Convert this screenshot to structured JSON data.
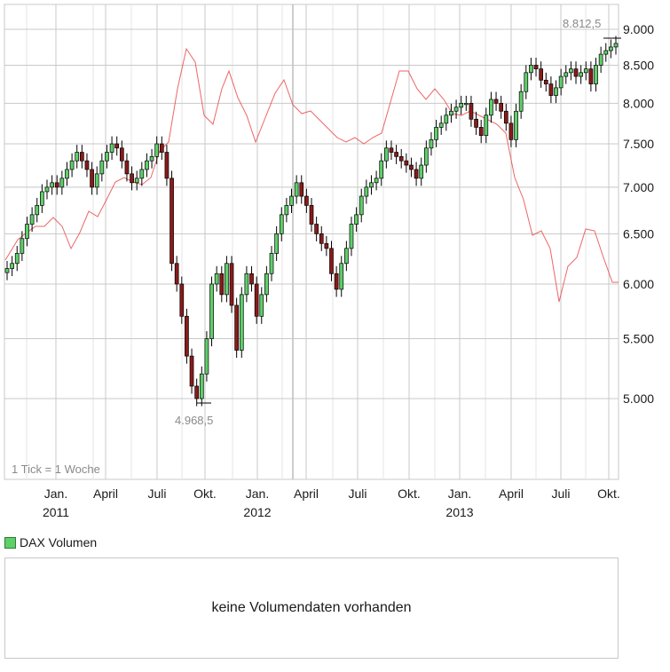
{
  "chart_data": {
    "type": "candlestick",
    "y_axis": {
      "ticks": [
        "9.000",
        "8.500",
        "8.000",
        "7.500",
        "7.000",
        "6.500",
        "6.000",
        "5.500",
        "5.000"
      ],
      "scale": "log",
      "range": [
        4900,
        9050
      ]
    },
    "x_axis": {
      "month_ticks": [
        "Jan.",
        "April",
        "Juli",
        "Okt.",
        "Jan.",
        "April",
        "Juli",
        "Okt.",
        "Jan.",
        "April",
        "Juli",
        "Okt."
      ],
      "year_labels": [
        "2011",
        "2012",
        "2013"
      ]
    },
    "annotations": {
      "high": "8.812,5",
      "low": "4.968,5",
      "interval_note": "1 Tick = 1 Woche"
    },
    "dax_weekly_close": [
      6150,
      6200,
      6300,
      6450,
      6600,
      6700,
      6800,
      6950,
      7000,
      7050,
      7000,
      7100,
      7200,
      7300,
      7400,
      7300,
      7200,
      7000,
      7150,
      7300,
      7400,
      7500,
      7450,
      7300,
      7150,
      7050,
      7100,
      7200,
      7300,
      7350,
      7500,
      7400,
      7100,
      6200,
      6000,
      5700,
      5350,
      5100,
      5000,
      5200,
      5500,
      6000,
      6100,
      5900,
      6200,
      5800,
      5400,
      5900,
      6100,
      6000,
      5700,
      5900,
      6100,
      6300,
      6500,
      6700,
      6800,
      6900,
      7050,
      6900,
      6800,
      6600,
      6500,
      6400,
      6350,
      6100,
      5950,
      6200,
      6350,
      6600,
      6700,
      6900,
      7000,
      7050,
      7100,
      7300,
      7450,
      7400,
      7350,
      7300,
      7250,
      7200,
      7100,
      7250,
      7450,
      7550,
      7700,
      7750,
      7850,
      7900,
      7950,
      8000,
      8000,
      7800,
      7700,
      7600,
      7850,
      8050,
      8000,
      7900,
      7750,
      7550,
      7900,
      8150,
      8400,
      8500,
      8450,
      8300,
      8250,
      8100,
      8200,
      8350,
      8400,
      8450,
      8350,
      8400,
      8450,
      8250,
      8500,
      8650,
      8700,
      8750,
      8800
    ]
  },
  "legend": {
    "volume_label": "DAX Volumen"
  },
  "volume_panel": {
    "message": "keine Volumendaten vorhanden"
  },
  "colors": {
    "up": "#5fcf6a",
    "down": "#8b1a1a",
    "line": "#e84040",
    "grid": "#c8c8c8"
  }
}
